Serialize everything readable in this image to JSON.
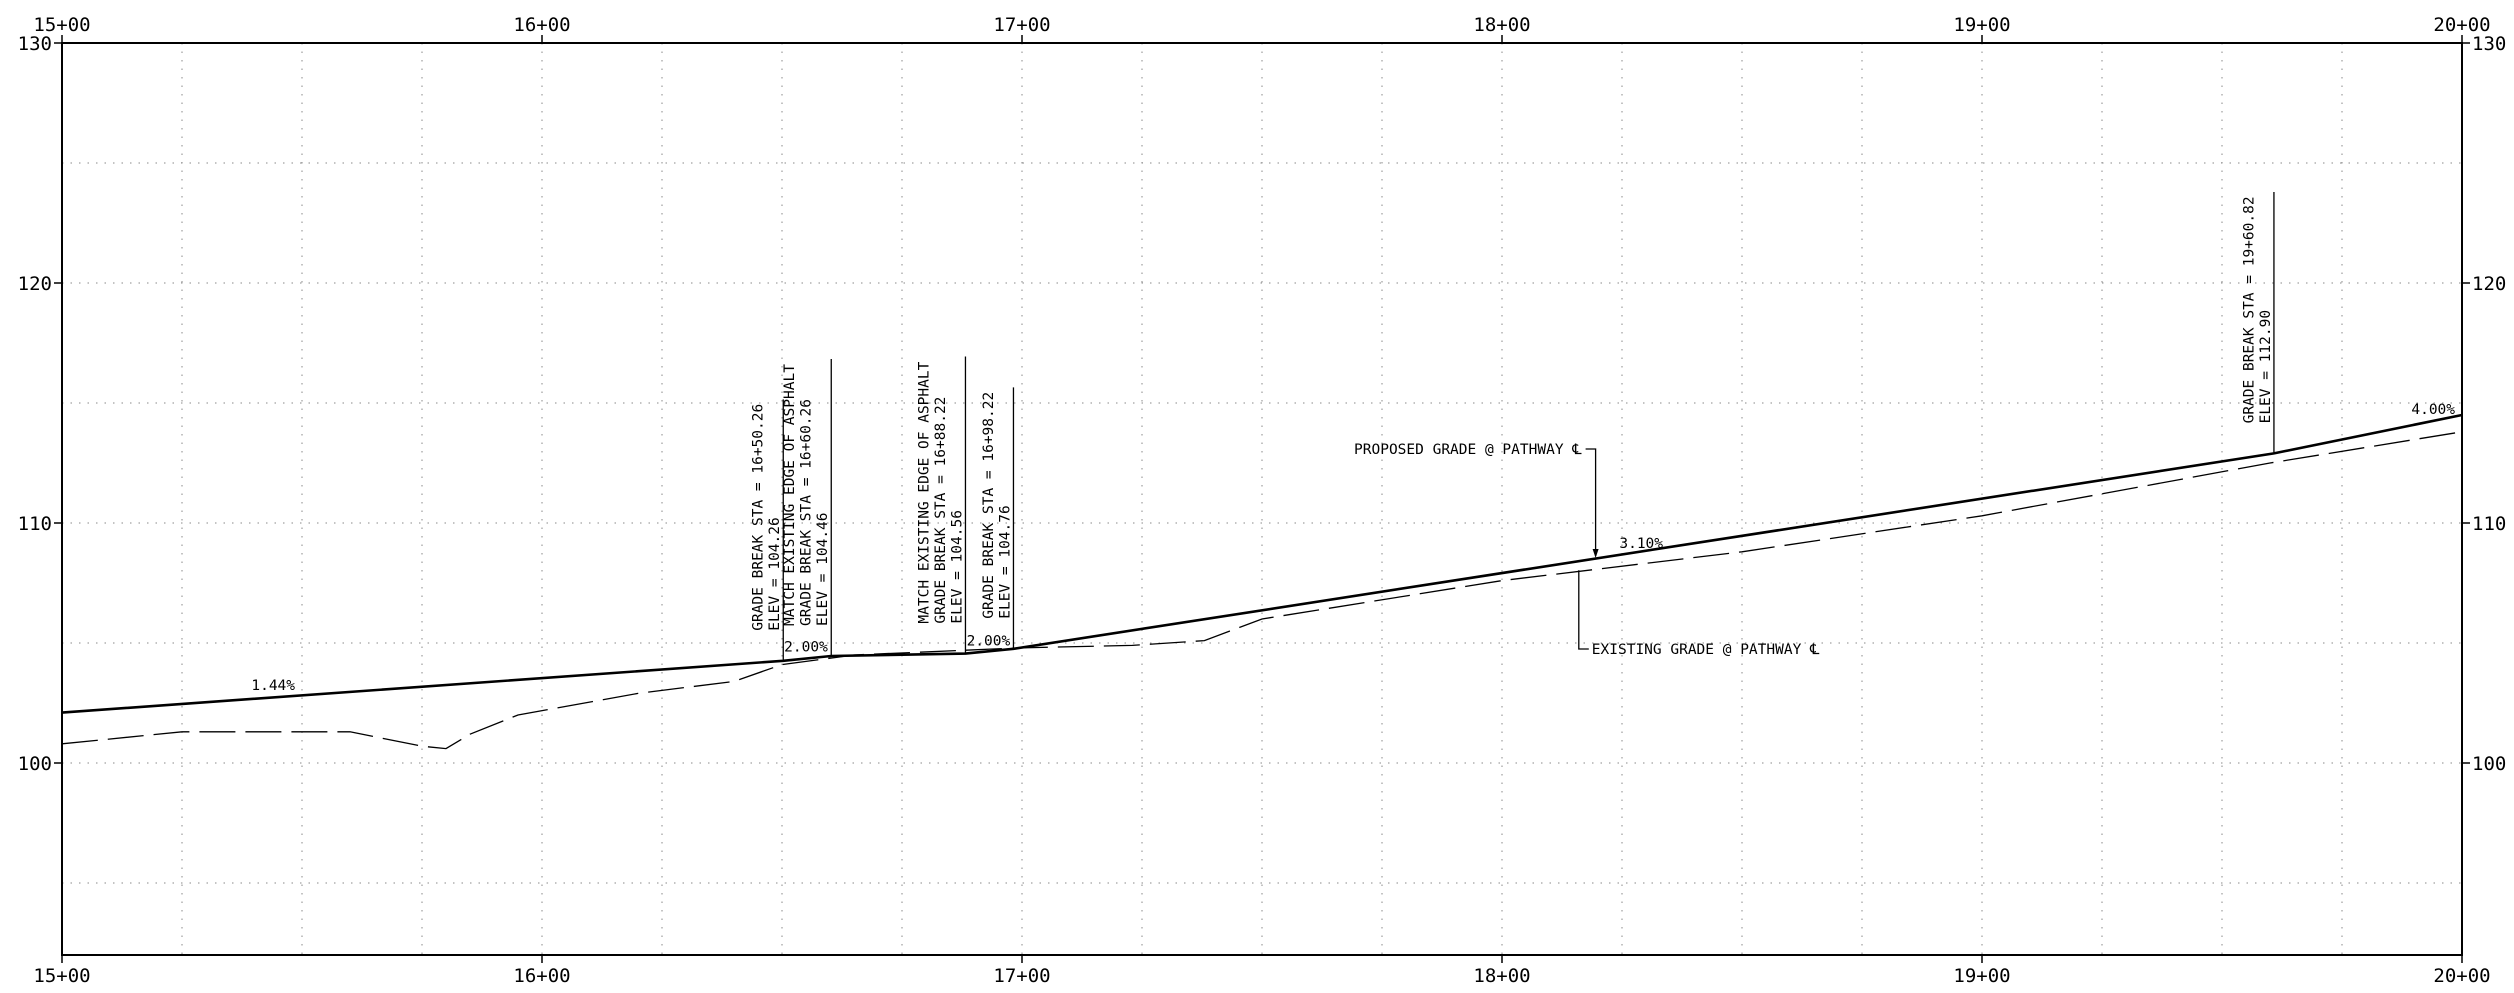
{
  "stations": [
    {
      "sta": 1500,
      "label": "15+00"
    },
    {
      "sta": 1600,
      "label": "16+00"
    },
    {
      "sta": 1700,
      "label": "17+00"
    },
    {
      "sta": 1800,
      "label": "18+00"
    },
    {
      "sta": 1900,
      "label": "19+00"
    },
    {
      "sta": 2000,
      "label": "20+00"
    }
  ],
  "elevations": [
    {
      "elev": 100,
      "label": "100"
    },
    {
      "elev": 110,
      "label": "110"
    },
    {
      "elev": 120,
      "label": "120"
    },
    {
      "elev": 130,
      "label": "130"
    }
  ],
  "chart_data": {
    "type": "line",
    "x_range": [
      1500,
      2000
    ],
    "y_range": [
      92,
      130
    ],
    "grid": true,
    "series": [
      {
        "name": "PROPOSED GRADE @ PATHWAY ℄",
        "style": "solid",
        "x": [
          1500,
          1650.26,
          1660.26,
          1688.22,
          1698.22,
          1960.82,
          2000
        ],
        "y": [
          102.1,
          104.26,
          104.46,
          104.56,
          104.76,
          112.9,
          114.5
        ]
      },
      {
        "name": "EXISTING GRADE @ PATHWAY ℄",
        "style": "dashed",
        "x": [
          1500,
          1525,
          1560,
          1575,
          1580,
          1585,
          1595,
          1620,
          1640,
          1650,
          1665,
          1700,
          1723,
          1738,
          1750,
          1800,
          1850,
          1900,
          1960,
          2000
        ],
        "y": [
          100.8,
          101.3,
          101.3,
          100.7,
          100.6,
          101.2,
          102.0,
          102.9,
          103.4,
          104.1,
          104.5,
          104.8,
          104.9,
          105.1,
          106.0,
          107.6,
          108.8,
          110.3,
          112.5,
          113.8
        ]
      }
    ]
  },
  "grades": [
    {
      "text": "1.44%",
      "sta": 1544,
      "elev": 102.8
    },
    {
      "text": "2.00%",
      "sta": 1655,
      "elev": 104.4
    },
    {
      "text": "2.00%",
      "sta": 1693,
      "elev": 104.65
    },
    {
      "text": "3.10%",
      "sta": 1829,
      "elev": 108.7
    },
    {
      "text": "4.00%",
      "sta": 1994,
      "elev": 114.3
    }
  ],
  "annotations": [
    {
      "sta": 1650.26,
      "elev": 104.26,
      "lines": [
        "GRADE BREAK STA = 16+50.26",
        "ELEV = 104.26"
      ]
    },
    {
      "sta": 1660.26,
      "elev": 104.46,
      "lines": [
        "MATCH EXISTING EDGE OF ASPHALT",
        "GRADE BREAK STA = 16+60.26",
        "ELEV = 104.46"
      ]
    },
    {
      "sta": 1688.22,
      "elev": 104.56,
      "lines": [
        "MATCH EXISTING EDGE OF ASPHALT",
        "GRADE BREAK STA = 16+88.22",
        "ELEV = 104.56"
      ]
    },
    {
      "sta": 1698.22,
      "elev": 104.76,
      "lines": [
        "GRADE BREAK STA = 16+98.22",
        "ELEV = 104.76"
      ]
    },
    {
      "sta": 1960.82,
      "elev": 112.9,
      "lines": [
        "GRADE BREAK STA = 19+60.82",
        "ELEV = 112.90"
      ]
    }
  ],
  "callouts": {
    "proposed": {
      "text": "PROPOSED GRADE @ PATHWAY ℄",
      "sta": 1819.5,
      "elev": 108.5
    },
    "existing": {
      "text": "EXISTING GRADE @ PATHWAY ℄",
      "sta": 1816,
      "elev": 108.2
    }
  }
}
